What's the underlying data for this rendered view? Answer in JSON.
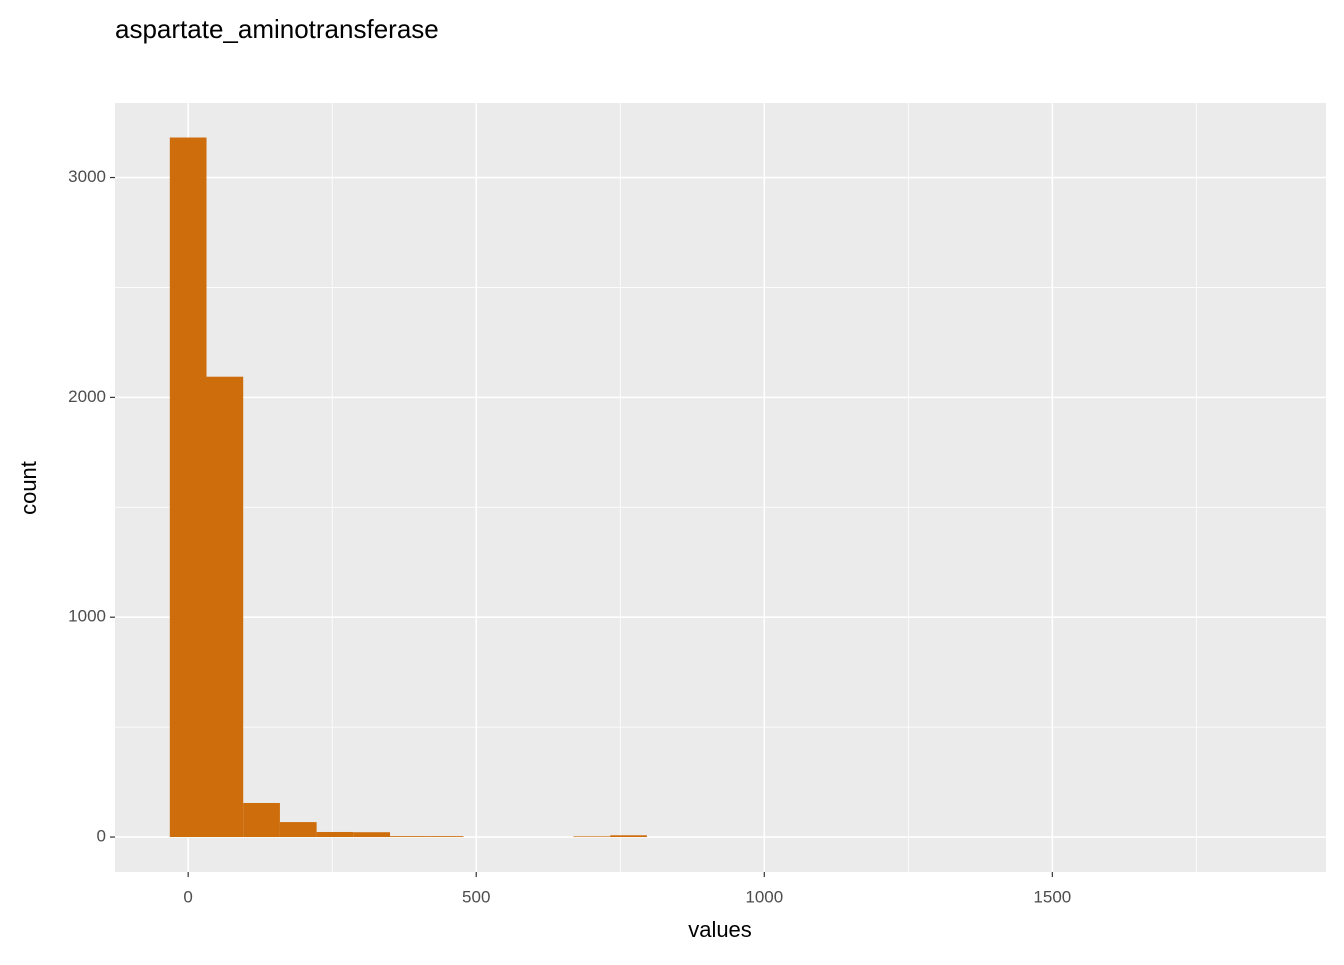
{
  "chart_data": {
    "type": "histogram",
    "title": "aspartate_aminotransferase",
    "x_label": "values",
    "y_label": "count",
    "bins": [
      -31.85,
      31.85,
      95.55,
      159.25,
      222.95,
      286.65,
      350.35,
      414.05,
      477.75,
      541.45,
      605.15,
      668.85,
      732.55,
      796.25,
      859.95,
      923.65,
      987.35,
      1051.05,
      1114.75,
      1178.45,
      1242.15,
      1305.85,
      1369.55,
      1433.25,
      1496.95,
      1560.65,
      1624.35,
      1688.05,
      1751.75,
      1815.45,
      1879.15
    ],
    "values": [
      3182,
      2094,
      155,
      68,
      23,
      22,
      4,
      4,
      0,
      0,
      0,
      3,
      8,
      0,
      0,
      0,
      0,
      0,
      0,
      0,
      0,
      0,
      0,
      0,
      0,
      0,
      0,
      0,
      0,
      0
    ],
    "color": "#cd6d0c",
    "xlim": [
      -127,
      1975
    ],
    "ylim": [
      -159,
      3339
    ],
    "xticks": [
      0,
      500,
      1000,
      1500
    ],
    "yticks": [
      0,
      1000,
      2000,
      3000
    ],
    "grid": true
  }
}
